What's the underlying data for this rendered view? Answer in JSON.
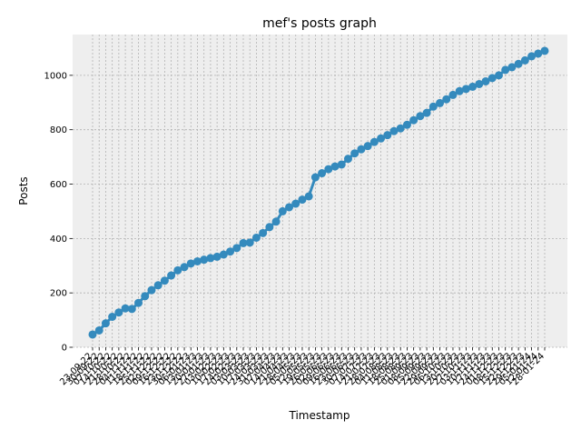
{
  "chart_data": {
    "type": "line",
    "title": "mef's posts graph",
    "x_label": "Timestamp",
    "y_label": "Posts",
    "categories": [
      "23-09-22",
      "30-09-22",
      "07-10-22",
      "14-10-22",
      "21-10-22",
      "28-10-22",
      "04-11-22",
      "11-11-22",
      "18-11-22",
      "25-11-22",
      "02-12-22",
      "09-12-22",
      "16-12-22",
      "23-12-22",
      "30-12-22",
      "06-01-23",
      "13-01-23",
      "20-01-23",
      "27-01-23",
      "03-02-23",
      "10-02-23",
      "17-02-23",
      "24-02-23",
      "03-03-23",
      "10-03-23",
      "17-03-23",
      "24-03-23",
      "31-03-23",
      "07-04-23",
      "14-04-23",
      "21-04-23",
      "28-04-23",
      "05-05-23",
      "12-05-23",
      "19-05-23",
      "26-05-23",
      "02-06-23",
      "09-06-23",
      "16-06-23",
      "23-06-23",
      "30-06-23",
      "07-07-23",
      "14-07-23",
      "21-07-23",
      "28-07-23",
      "04-08-23",
      "11-08-23",
      "18-08-23",
      "25-08-23",
      "01-09-23",
      "08-09-23",
      "15-09-23",
      "22-09-23",
      "29-09-23",
      "06-10-23",
      "13-10-23",
      "20-10-23",
      "27-10-23",
      "03-11-23",
      "10-11-23",
      "17-11-23",
      "24-11-23",
      "01-12-23",
      "08-12-23",
      "15-12-23",
      "22-12-23",
      "29-12-23",
      "05-01-24",
      "12-01-24",
      "28-01-24"
    ],
    "series": [
      {
        "name": "Posts",
        "color": "#348ABD",
        "values": [
          47,
          62,
          88,
          112,
          128,
          143,
          141,
          163,
          188,
          210,
          228,
          245,
          264,
          283,
          295,
          308,
          316,
          322,
          328,
          333,
          341,
          352,
          365,
          383,
          385,
          403,
          420,
          442,
          462,
          500,
          515,
          528,
          543,
          555,
          625,
          640,
          655,
          665,
          672,
          693,
          713,
          728,
          740,
          755,
          768,
          780,
          795,
          805,
          818,
          835,
          850,
          862,
          885,
          898,
          912,
          928,
          942,
          950,
          958,
          968,
          978,
          990,
          1000,
          1020,
          1030,
          1042,
          1055,
          1070,
          1080,
          1090
        ]
      }
    ],
    "ylim": [
      0,
      1150
    ],
    "yticks": [
      0,
      200,
      400,
      600,
      800,
      1000
    ],
    "grid": true
  }
}
